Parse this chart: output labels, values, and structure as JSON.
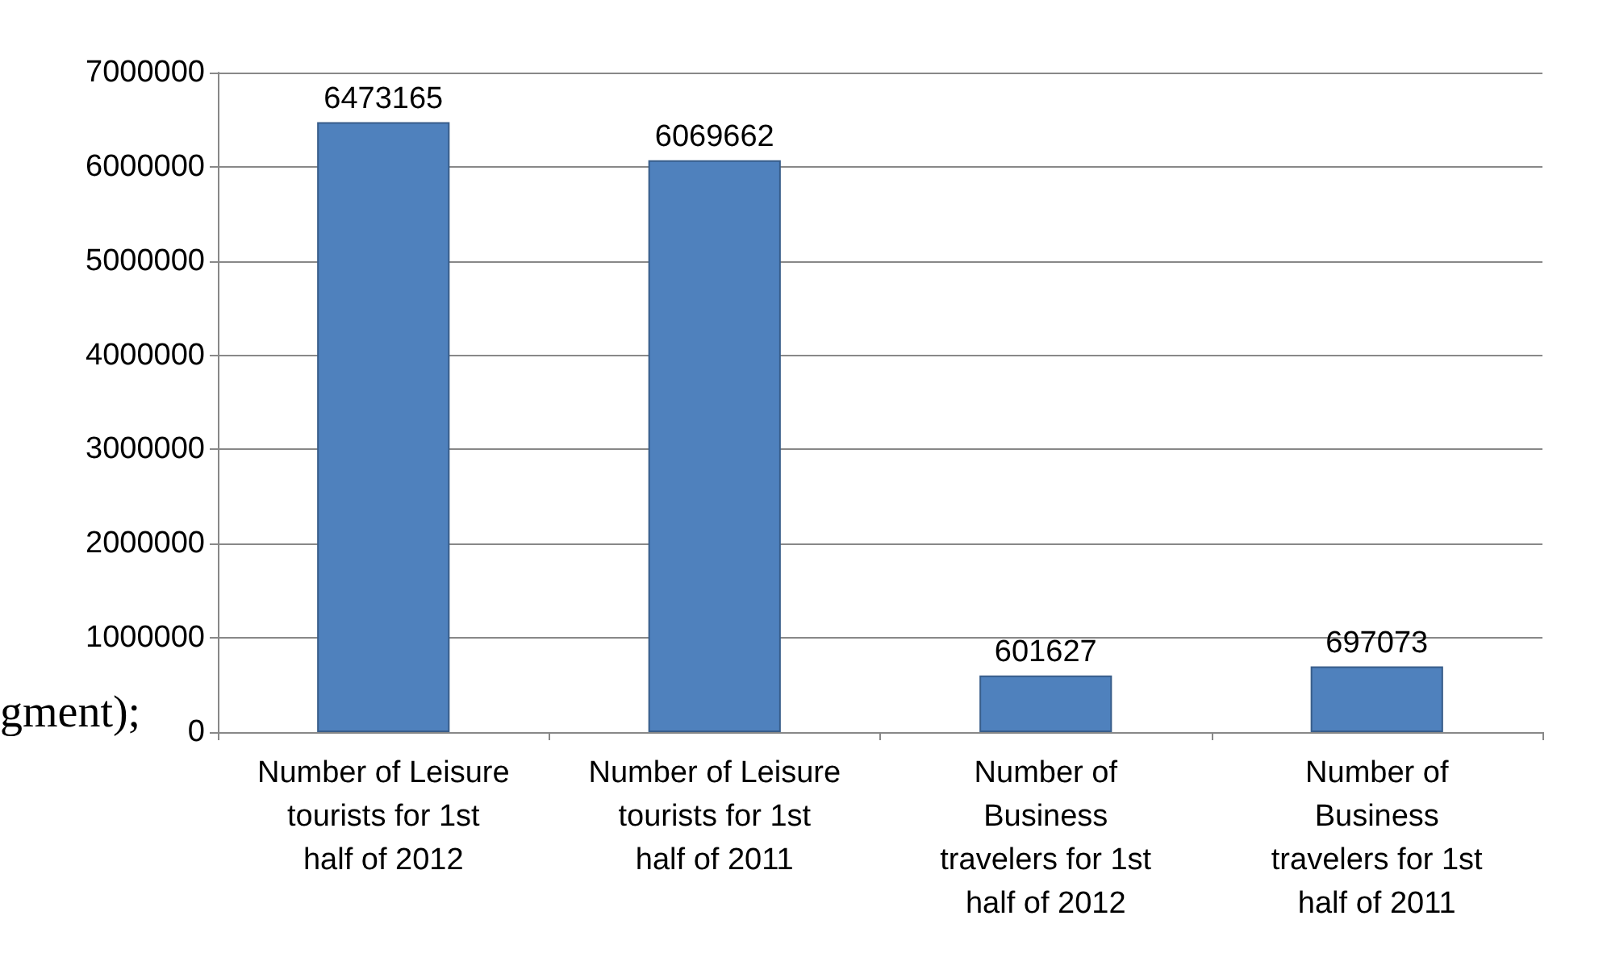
{
  "chart_data": {
    "type": "bar",
    "categories": [
      "Number of Leisure tourists for 1st half of 2012",
      "Number of Leisure tourists for 1st half of 2011",
      "Number of Business travelers for 1st half of 2012",
      "Number of Business travelers for 1st half of 2011"
    ],
    "values": [
      6473165,
      6069662,
      601627,
      697073
    ],
    "color": "#4f81bd",
    "ylim": [
      0,
      7000000
    ],
    "yticks": [
      0,
      1000000,
      2000000,
      3000000,
      4000000,
      5000000,
      6000000,
      7000000
    ],
    "grid": "y",
    "data_labels": true,
    "annotations": [
      "gment);"
    ]
  }
}
